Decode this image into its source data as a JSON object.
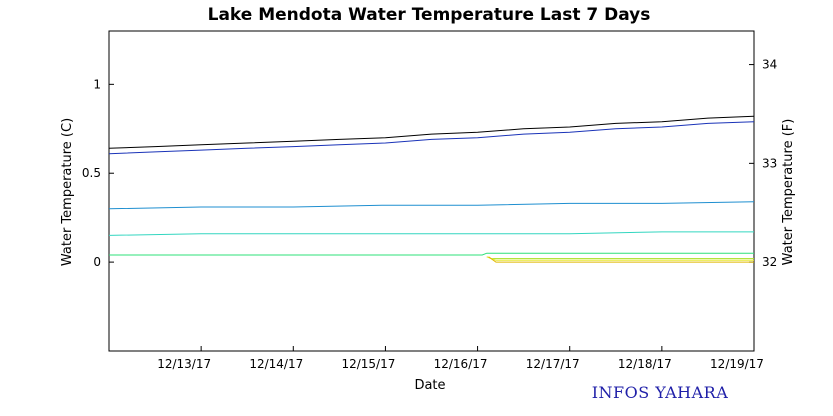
{
  "chart_data": {
    "type": "line",
    "title": "Lake Mendota Water Temperature Last 7 Days",
    "xlabel": "Date",
    "ylabel": "Water Temperature (C)",
    "y2label": "Water Temperature (F)",
    "x_ticks": [
      "12/13/17",
      "12/14/17",
      "12/15/17",
      "12/16/17",
      "12/17/17",
      "12/18/17",
      "12/19/17"
    ],
    "xlim": [
      0,
      7
    ],
    "ylim": [
      -0.5,
      1.3
    ],
    "y_ticks": [
      0,
      0.5,
      1
    ],
    "y_tick_labels": [
      "0",
      "0.5",
      "1"
    ],
    "y2_ticks": [
      32,
      33,
      34
    ],
    "y2_tick_labels": [
      "32",
      "33",
      "34"
    ],
    "grid": false,
    "legend": "none",
    "series": [
      {
        "color": "#000000",
        "x": [
          0,
          0.5,
          1,
          1.5,
          2,
          2.5,
          3,
          3.5,
          4,
          4.5,
          5,
          5.5,
          6,
          6.5,
          7
        ],
        "values": [
          0.64,
          0.65,
          0.66,
          0.67,
          0.68,
          0.69,
          0.7,
          0.72,
          0.73,
          0.75,
          0.76,
          0.78,
          0.79,
          0.81,
          0.82
        ]
      },
      {
        "color": "#1a33b8",
        "x": [
          0,
          0.5,
          1,
          1.5,
          2,
          2.5,
          3,
          3.5,
          4,
          4.5,
          5,
          5.5,
          6,
          6.5,
          7
        ],
        "values": [
          0.61,
          0.62,
          0.63,
          0.64,
          0.65,
          0.66,
          0.67,
          0.69,
          0.7,
          0.72,
          0.73,
          0.75,
          0.76,
          0.78,
          0.79
        ]
      },
      {
        "color": "#1f8fd0",
        "x": [
          0,
          1,
          2,
          3,
          4,
          5,
          6,
          7
        ],
        "values": [
          0.3,
          0.31,
          0.31,
          0.32,
          0.32,
          0.33,
          0.33,
          0.34
        ]
      },
      {
        "color": "#33d6c0",
        "x": [
          0,
          1,
          2,
          3,
          4,
          5,
          6,
          7
        ],
        "values": [
          0.15,
          0.16,
          0.16,
          0.16,
          0.16,
          0.16,
          0.17,
          0.17
        ]
      },
      {
        "color": "#2ee07a",
        "x": [
          0,
          1,
          2,
          3,
          4,
          4.05,
          4.1,
          5,
          6,
          7
        ],
        "values": [
          0.04,
          0.04,
          0.04,
          0.04,
          0.04,
          0.04,
          0.05,
          0.05,
          0.05,
          0.05
        ]
      },
      {
        "color": "#a6e020",
        "x": [
          4.1,
          4.15,
          4.5,
          4.85,
          5,
          6,
          7
        ],
        "values": [
          0.03,
          0.02,
          0.02,
          0.02,
          0.02,
          0.02,
          0.02
        ]
      },
      {
        "color": "#e8e830",
        "x": [
          4.1,
          4.2,
          5,
          6,
          6.2,
          7
        ],
        "values": [
          0.03,
          0.01,
          0.01,
          0.01,
          0.01,
          0.01
        ]
      },
      {
        "color": "#e0b800",
        "x": [
          4.12,
          4.2,
          4.85,
          5,
          6,
          6.5,
          7
        ],
        "values": [
          0.03,
          0.0,
          0.0,
          0.0,
          0.0,
          0.0,
          0.0
        ]
      }
    ]
  },
  "credit": {
    "text": "INFOS YAHARA",
    "color": "#1f1fa8"
  }
}
